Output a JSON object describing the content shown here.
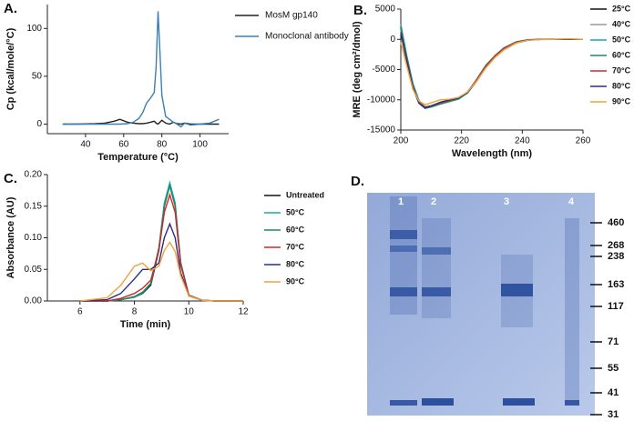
{
  "chart_data": [
    {
      "type": "line",
      "panel_label": "A.",
      "x_label": "Temperature (°C)",
      "y_label": "Cp (kcal/mole/°C)",
      "x": [
        28,
        35,
        45,
        50,
        55,
        58,
        62,
        65,
        68,
        70,
        72,
        74,
        76,
        77,
        78,
        79,
        80,
        82,
        84,
        86,
        88,
        90,
        92,
        95,
        100,
        105,
        110
      ],
      "series": [
        {
          "name": "MosM gp140",
          "color": "#222222",
          "values": [
            0,
            0,
            0.5,
            1,
            3,
            5,
            2,
            1,
            0.5,
            0.5,
            1,
            2,
            3,
            1,
            0,
            2,
            4,
            1,
            0,
            2,
            0.5,
            0,
            1,
            0,
            0,
            0,
            0
          ]
        },
        {
          "name": "Monoclonal antibody",
          "color": "#3a7fb5",
          "values": [
            0,
            0,
            0,
            0,
            0,
            0,
            0.5,
            2,
            6,
            12,
            22,
            27,
            33,
            60,
            118,
            75,
            30,
            8,
            5,
            2,
            0,
            -3,
            1,
            -1,
            0,
            1,
            5
          ]
        }
      ],
      "xlim": [
        20,
        115
      ],
      "ylim": [
        -10,
        125
      ],
      "xticks": [
        40,
        60,
        80,
        100
      ],
      "yticks": [
        0,
        50,
        100
      ]
    },
    {
      "type": "line",
      "panel_label": "B.",
      "x_label": "Wavelength (nm)",
      "y_label": "MRE (deg cm²/dmol)",
      "x": [
        200,
        202,
        204,
        206,
        208,
        210,
        213,
        216,
        219,
        222,
        225,
        228,
        231,
        234,
        238,
        242,
        246,
        250,
        255,
        260
      ],
      "series": [
        {
          "name": "25°C",
          "color": "#111111",
          "values": [
            2000,
            -3000,
            -7500,
            -10200,
            -11200,
            -11000,
            -10500,
            -10200,
            -9800,
            -8800,
            -6800,
            -4500,
            -2800,
            -1500,
            -500,
            -100,
            0,
            0,
            50,
            0
          ]
        },
        {
          "name": "40°C",
          "color": "#999999",
          "values": [
            1500,
            -3200,
            -7700,
            -10300,
            -11300,
            -11100,
            -10600,
            -10200,
            -9800,
            -8700,
            -6700,
            -4400,
            -2700,
            -1400,
            -500,
            -100,
            0,
            0,
            0,
            0
          ]
        },
        {
          "name": "50°C",
          "color": "#1aa3b8",
          "values": [
            2500,
            -2800,
            -7300,
            -10100,
            -11300,
            -11200,
            -10700,
            -10300,
            -9900,
            -8900,
            -6900,
            -4600,
            -2900,
            -1600,
            -600,
            -100,
            0,
            50,
            0,
            0
          ]
        },
        {
          "name": "60°C",
          "color": "#1f8a5c",
          "values": [
            1800,
            -3000,
            -7600,
            -10400,
            -11400,
            -11200,
            -10700,
            -10300,
            -9800,
            -8800,
            -6600,
            -4300,
            -2700,
            -1400,
            -400,
            -50,
            0,
            0,
            0,
            0
          ]
        },
        {
          "name": "70°C",
          "color": "#d1262b",
          "values": [
            1200,
            -3500,
            -7900,
            -10500,
            -11300,
            -11000,
            -10500,
            -10100,
            -9700,
            -8700,
            -6700,
            -4500,
            -2800,
            -1500,
            -500,
            -100,
            0,
            0,
            0,
            0
          ]
        },
        {
          "name": "80°C",
          "color": "#2b2f7a",
          "values": [
            1000,
            -3700,
            -8100,
            -10600,
            -11400,
            -11000,
            -10400,
            -10000,
            -9700,
            -8800,
            -6900,
            -4700,
            -3000,
            -1700,
            -600,
            -150,
            0,
            0,
            0,
            0
          ]
        },
        {
          "name": "90°C",
          "color": "#f0a33a",
          "values": [
            -500,
            -4500,
            -8300,
            -10200,
            -10800,
            -10500,
            -10000,
            -9900,
            -9600,
            -8700,
            -6900,
            -4700,
            -3000,
            -1700,
            -600,
            -150,
            -50,
            0,
            100,
            0
          ]
        }
      ],
      "xlim": [
        200,
        260
      ],
      "ylim": [
        -15000,
        5000
      ],
      "xticks": [
        200,
        220,
        240,
        260
      ],
      "yticks": [
        -15000,
        -10000,
        -5000,
        0,
        5000
      ]
    },
    {
      "type": "line",
      "panel_label": "C.",
      "x_label": "Time (min)",
      "y_label": "Absorbance (AU)",
      "x": [
        6,
        7,
        7.5,
        8,
        8.3,
        8.6,
        8.9,
        9.1,
        9.3,
        9.5,
        9.7,
        10,
        10.5,
        11,
        12
      ],
      "series": [
        {
          "name": "Untreated",
          "color": "#111111",
          "values": [
            0,
            0,
            0.002,
            0.006,
            0.012,
            0.025,
            0.08,
            0.15,
            0.185,
            0.15,
            0.06,
            0.008,
            0.001,
            0,
            0
          ]
        },
        {
          "name": "50°C",
          "color": "#1aa3b8",
          "values": [
            0,
            0,
            0.002,
            0.006,
            0.013,
            0.027,
            0.085,
            0.155,
            0.187,
            0.155,
            0.062,
            0.009,
            0.001,
            0,
            0
          ]
        },
        {
          "name": "60°C",
          "color": "#1f8a5c",
          "values": [
            0,
            0,
            0.002,
            0.007,
            0.014,
            0.028,
            0.082,
            0.15,
            0.182,
            0.15,
            0.06,
            0.009,
            0.001,
            0,
            0
          ]
        },
        {
          "name": "70°C",
          "color": "#d1262b",
          "values": [
            0,
            0,
            0.004,
            0.012,
            0.02,
            0.033,
            0.08,
            0.14,
            0.168,
            0.14,
            0.058,
            0.009,
            0.001,
            0,
            0
          ]
        },
        {
          "name": "80°C",
          "color": "#2b2f7a",
          "values": [
            0,
            0.002,
            0.012,
            0.035,
            0.05,
            0.05,
            0.06,
            0.1,
            0.122,
            0.1,
            0.045,
            0.008,
            0.001,
            0,
            0
          ]
        },
        {
          "name": "90°C",
          "color": "#f0a33a",
          "values": [
            0,
            0.005,
            0.025,
            0.055,
            0.06,
            0.048,
            0.055,
            0.08,
            0.093,
            0.078,
            0.04,
            0.008,
            0.001,
            0,
            0
          ]
        }
      ],
      "xlim": [
        4.8,
        12
      ],
      "ylim": [
        0,
        0.2
      ],
      "xticks": [
        6,
        8,
        10,
        12
      ],
      "yticks": [
        {
          "value": 0,
          "label": "0.00"
        },
        {
          "value": 0.05,
          "label": "0.05"
        },
        {
          "value": 0.1,
          "label": "0.10"
        },
        {
          "value": 0.15,
          "label": "0.15"
        },
        {
          "value": 0.2,
          "label": "0.20"
        }
      ]
    }
  ],
  "gel": {
    "panel_label": "D.",
    "lanes": [
      "1",
      "2",
      "3",
      "4"
    ],
    "markers": [
      460,
      268,
      238,
      163,
      117,
      71,
      55,
      41,
      31
    ]
  }
}
